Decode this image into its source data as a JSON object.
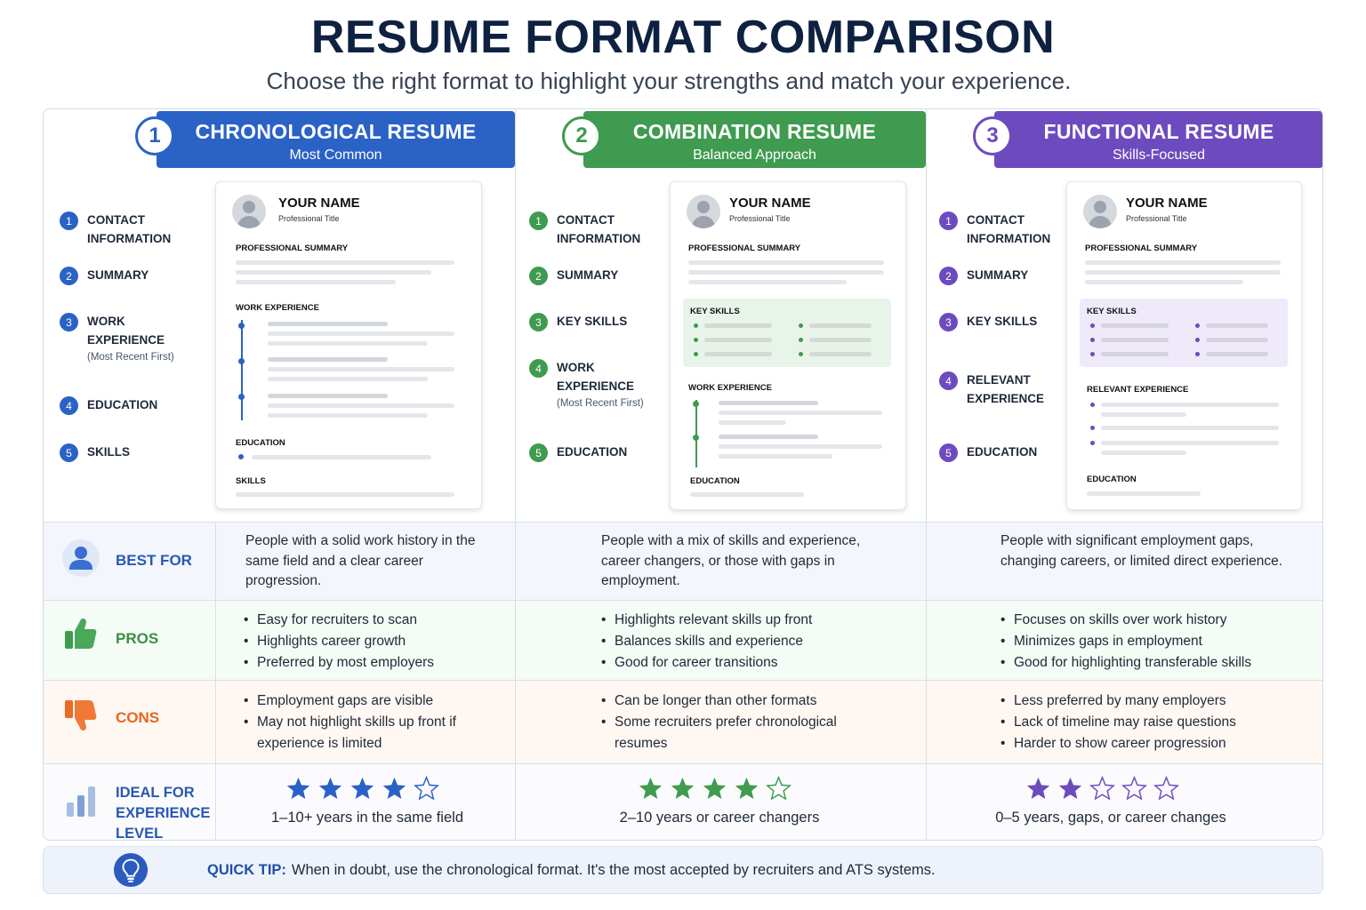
{
  "title": "RESUME FORMAT COMPARISON",
  "subtitle": "Choose the right format to highlight your strengths and match your experience.",
  "colors": {
    "blue": "#2b62c6",
    "green": "#3f9b4f",
    "purple": "#6d4bbf",
    "orange": "#ef6a22",
    "navy": "#0f2140"
  },
  "columns": [
    {
      "number": "1",
      "title": "CHRONOLOGICAL RESUME",
      "subtitle": "Most Common",
      "sections": [
        {
          "n": "1",
          "label": "CONTACT INFORMATION",
          "note": ""
        },
        {
          "n": "2",
          "label": "SUMMARY",
          "note": ""
        },
        {
          "n": "3",
          "label": "WORK EXPERIENCE",
          "note": "(Most Recent First)"
        },
        {
          "n": "4",
          "label": "EDUCATION",
          "note": ""
        },
        {
          "n": "5",
          "label": "SKILLS",
          "note": ""
        }
      ],
      "paper": {
        "name": "YOUR NAME",
        "role": "Professional Title",
        "headings": [
          "PROFESSIONAL SUMMARY",
          "WORK EXPERIENCE",
          "EDUCATION",
          "SKILLS"
        ]
      }
    },
    {
      "number": "2",
      "title": "COMBINATION RESUME",
      "subtitle": "Balanced Approach",
      "sections": [
        {
          "n": "1",
          "label": "CONTACT INFORMATION",
          "note": ""
        },
        {
          "n": "2",
          "label": "SUMMARY",
          "note": ""
        },
        {
          "n": "3",
          "label": "KEY SKILLS",
          "note": ""
        },
        {
          "n": "4",
          "label": "WORK EXPERIENCE",
          "note": "(Most Recent First)"
        },
        {
          "n": "5",
          "label": "EDUCATION",
          "note": ""
        }
      ],
      "paper": {
        "name": "YOUR NAME",
        "role": "Professional Title",
        "headings": [
          "PROFESSIONAL SUMMARY",
          "KEY SKILLS",
          "WORK EXPERIENCE",
          "EDUCATION"
        ]
      }
    },
    {
      "number": "3",
      "title": "FUNCTIONAL RESUME",
      "subtitle": "Skills-Focused",
      "sections": [
        {
          "n": "1",
          "label": "CONTACT INFORMATION",
          "note": ""
        },
        {
          "n": "2",
          "label": "SUMMARY",
          "note": ""
        },
        {
          "n": "3",
          "label": "KEY SKILLS",
          "note": ""
        },
        {
          "n": "4",
          "label": "RELEVANT EXPERIENCE",
          "note": ""
        },
        {
          "n": "5",
          "label": "EDUCATION",
          "note": ""
        }
      ],
      "paper": {
        "name": "YOUR NAME",
        "role": "Professional Title",
        "headings": [
          "PROFESSIONAL SUMMARY",
          "KEY SKILLS",
          "RELEVANT EXPERIENCE",
          "EDUCATION"
        ]
      }
    }
  ],
  "rows": {
    "best_for": {
      "label": "BEST FOR",
      "icon": "person-icon",
      "values": [
        "People with a solid work history in the same field and a clear career progression.",
        "People with a mix of skills and experience, career changers, or those with gaps in employment.",
        "People with significant employment gaps, changing careers, or limited direct experience."
      ]
    },
    "pros": {
      "label": "PROS",
      "icon": "thumbs-up-icon",
      "values": [
        [
          "Easy for recruiters to scan",
          "Highlights career growth",
          "Preferred by most employers"
        ],
        [
          "Highlights relevant skills up front",
          "Balances skills and experience",
          "Good for career transitions"
        ],
        [
          "Focuses on skills over work history",
          "Minimizes gaps in employment",
          "Good for highlighting transferable skills"
        ]
      ]
    },
    "cons": {
      "label": "CONS",
      "icon": "thumbs-down-icon",
      "values": [
        [
          "Employment gaps are visible",
          "May not highlight skills up front if experience is limited"
        ],
        [
          "Can be longer than other formats",
          "Some recruiters prefer chronological resumes"
        ],
        [
          "Less preferred by many employers",
          "Lack of timeline may raise questions",
          "Harder to show career progression"
        ]
      ]
    },
    "ideal": {
      "label": "IDEAL FOR EXPERIENCE LEVEL",
      "icon": "bar-chart-icon",
      "ratings": [
        4,
        4,
        2
      ],
      "max_rating": 5,
      "values": [
        "1–10+ years in the same field",
        "2–10 years or career changers",
        "0–5 years, gaps, or career changes"
      ]
    }
  },
  "tip": {
    "label": "QUICK TIP:",
    "text": "When in doubt, use the chronological format. It's the most accepted by recruiters and ATS systems.",
    "icon": "lightbulb-icon"
  }
}
